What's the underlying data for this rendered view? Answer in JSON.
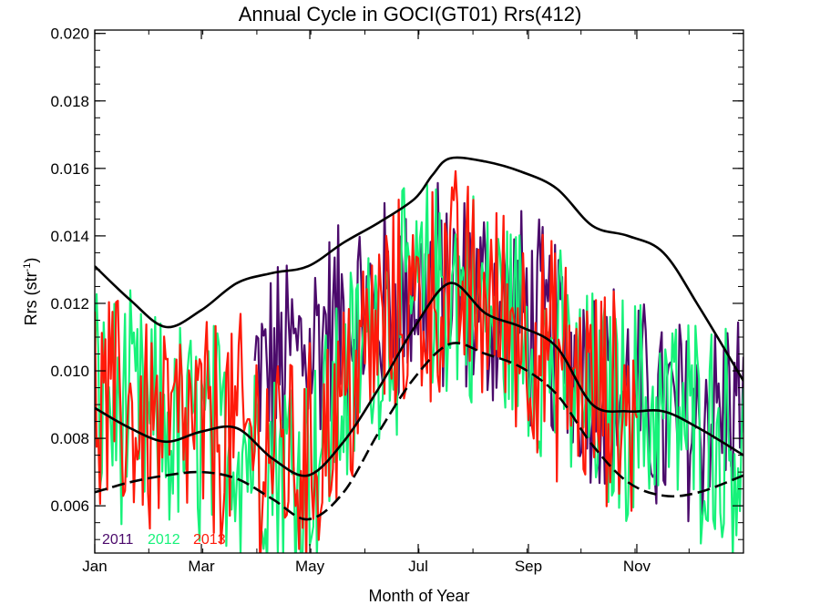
{
  "chart_data": {
    "type": "line",
    "title": "Annual Cycle in GOCI(GT01) Rrs(412)",
    "xlabel": "Month of Year",
    "ylabel_main": "Rrs (str",
    "ylabel_sup": "-1",
    "ylabel_close": ")",
    "xlim": [
      0,
      365
    ],
    "ylim": [
      0.0046,
      0.0201
    ],
    "x_ticks": [
      {
        "value": 0,
        "label": "Jan"
      },
      {
        "value": 60,
        "label": "Mar"
      },
      {
        "value": 121,
        "label": "May"
      },
      {
        "value": 182,
        "label": "Jul"
      },
      {
        "value": 244,
        "label": "Sep"
      },
      {
        "value": 305,
        "label": "Nov"
      }
    ],
    "y_ticks": [
      {
        "value": 0.006,
        "label": "0.006"
      },
      {
        "value": 0.008,
        "label": "0.008"
      },
      {
        "value": 0.01,
        "label": "0.010"
      },
      {
        "value": 0.012,
        "label": "0.012"
      },
      {
        "value": 0.014,
        "label": "0.014"
      },
      {
        "value": 0.016,
        "label": "0.016"
      },
      {
        "value": 0.018,
        "label": "0.018"
      },
      {
        "value": 0.02,
        "label": "0.020"
      }
    ],
    "grid": false,
    "legend_position": "bottom-left",
    "series": [
      {
        "name": "2011",
        "color": "#4b0a6b",
        "style": "daily-noisy",
        "x_start": 90,
        "x_end": 365,
        "approx_mean": [
          0.0096,
          0.0112,
          0.0125,
          0.0117,
          0.01,
          0.0085,
          0.009
        ],
        "approx_mean_x": [
          90,
          130,
          190,
          240,
          280,
          320,
          365
        ],
        "approx_spread": 0.003
      },
      {
        "name": "2012",
        "color": "#17f27a",
        "style": "daily-noisy",
        "x_start": 0,
        "x_end": 365,
        "approx_mean": [
          0.0092,
          0.0082,
          0.008,
          0.0072,
          0.0115,
          0.0125,
          0.0113,
          0.009,
          0.0088,
          0.0078
        ],
        "approx_mean_x": [
          0,
          40,
          80,
          120,
          160,
          200,
          240,
          280,
          320,
          365
        ],
        "approx_spread": 0.0032
      },
      {
        "name": "2013",
        "color": "#ff1a0a",
        "style": "daily-noisy",
        "x_start": 0,
        "x_end": 305,
        "approx_mean": [
          0.009,
          0.0082,
          0.0082,
          0.0072,
          0.0112,
          0.0126,
          0.0114,
          0.0092,
          0.0088
        ],
        "approx_mean_x": [
          0,
          40,
          80,
          120,
          160,
          200,
          240,
          280,
          305
        ],
        "approx_spread": 0.0032
      },
      {
        "name": "climatology-upper",
        "color": "#000000",
        "style": "solid",
        "x": [
          0,
          20,
          40,
          60,
          80,
          100,
          120,
          140,
          160,
          180,
          190,
          200,
          220,
          240,
          260,
          280,
          300,
          320,
          340,
          365
        ],
        "y": [
          0.0131,
          0.0121,
          0.0113,
          0.0118,
          0.0126,
          0.0129,
          0.0131,
          0.0138,
          0.0144,
          0.0151,
          0.0158,
          0.0163,
          0.0162,
          0.0159,
          0.0154,
          0.0143,
          0.014,
          0.0135,
          0.0119,
          0.0097
        ]
      },
      {
        "name": "climatology-mean",
        "color": "#000000",
        "style": "solid",
        "x": [
          0,
          20,
          40,
          60,
          80,
          100,
          120,
          140,
          160,
          180,
          200,
          220,
          240,
          260,
          280,
          300,
          320,
          340,
          365
        ],
        "y": [
          0.0089,
          0.0083,
          0.0079,
          0.0082,
          0.0083,
          0.0074,
          0.0069,
          0.0079,
          0.0095,
          0.0113,
          0.0126,
          0.0117,
          0.0113,
          0.0107,
          0.009,
          0.0088,
          0.0088,
          0.0083,
          0.0075
        ]
      },
      {
        "name": "climatology-lower",
        "color": "#000000",
        "style": "dashed",
        "x": [
          0,
          20,
          40,
          60,
          80,
          100,
          120,
          140,
          160,
          180,
          200,
          220,
          240,
          260,
          280,
          300,
          320,
          340,
          365
        ],
        "y": [
          0.0064,
          0.0067,
          0.0069,
          0.007,
          0.0068,
          0.0062,
          0.0056,
          0.0064,
          0.0082,
          0.0098,
          0.0108,
          0.0105,
          0.0101,
          0.0093,
          0.0078,
          0.0067,
          0.0063,
          0.0064,
          0.0069
        ]
      }
    ]
  }
}
